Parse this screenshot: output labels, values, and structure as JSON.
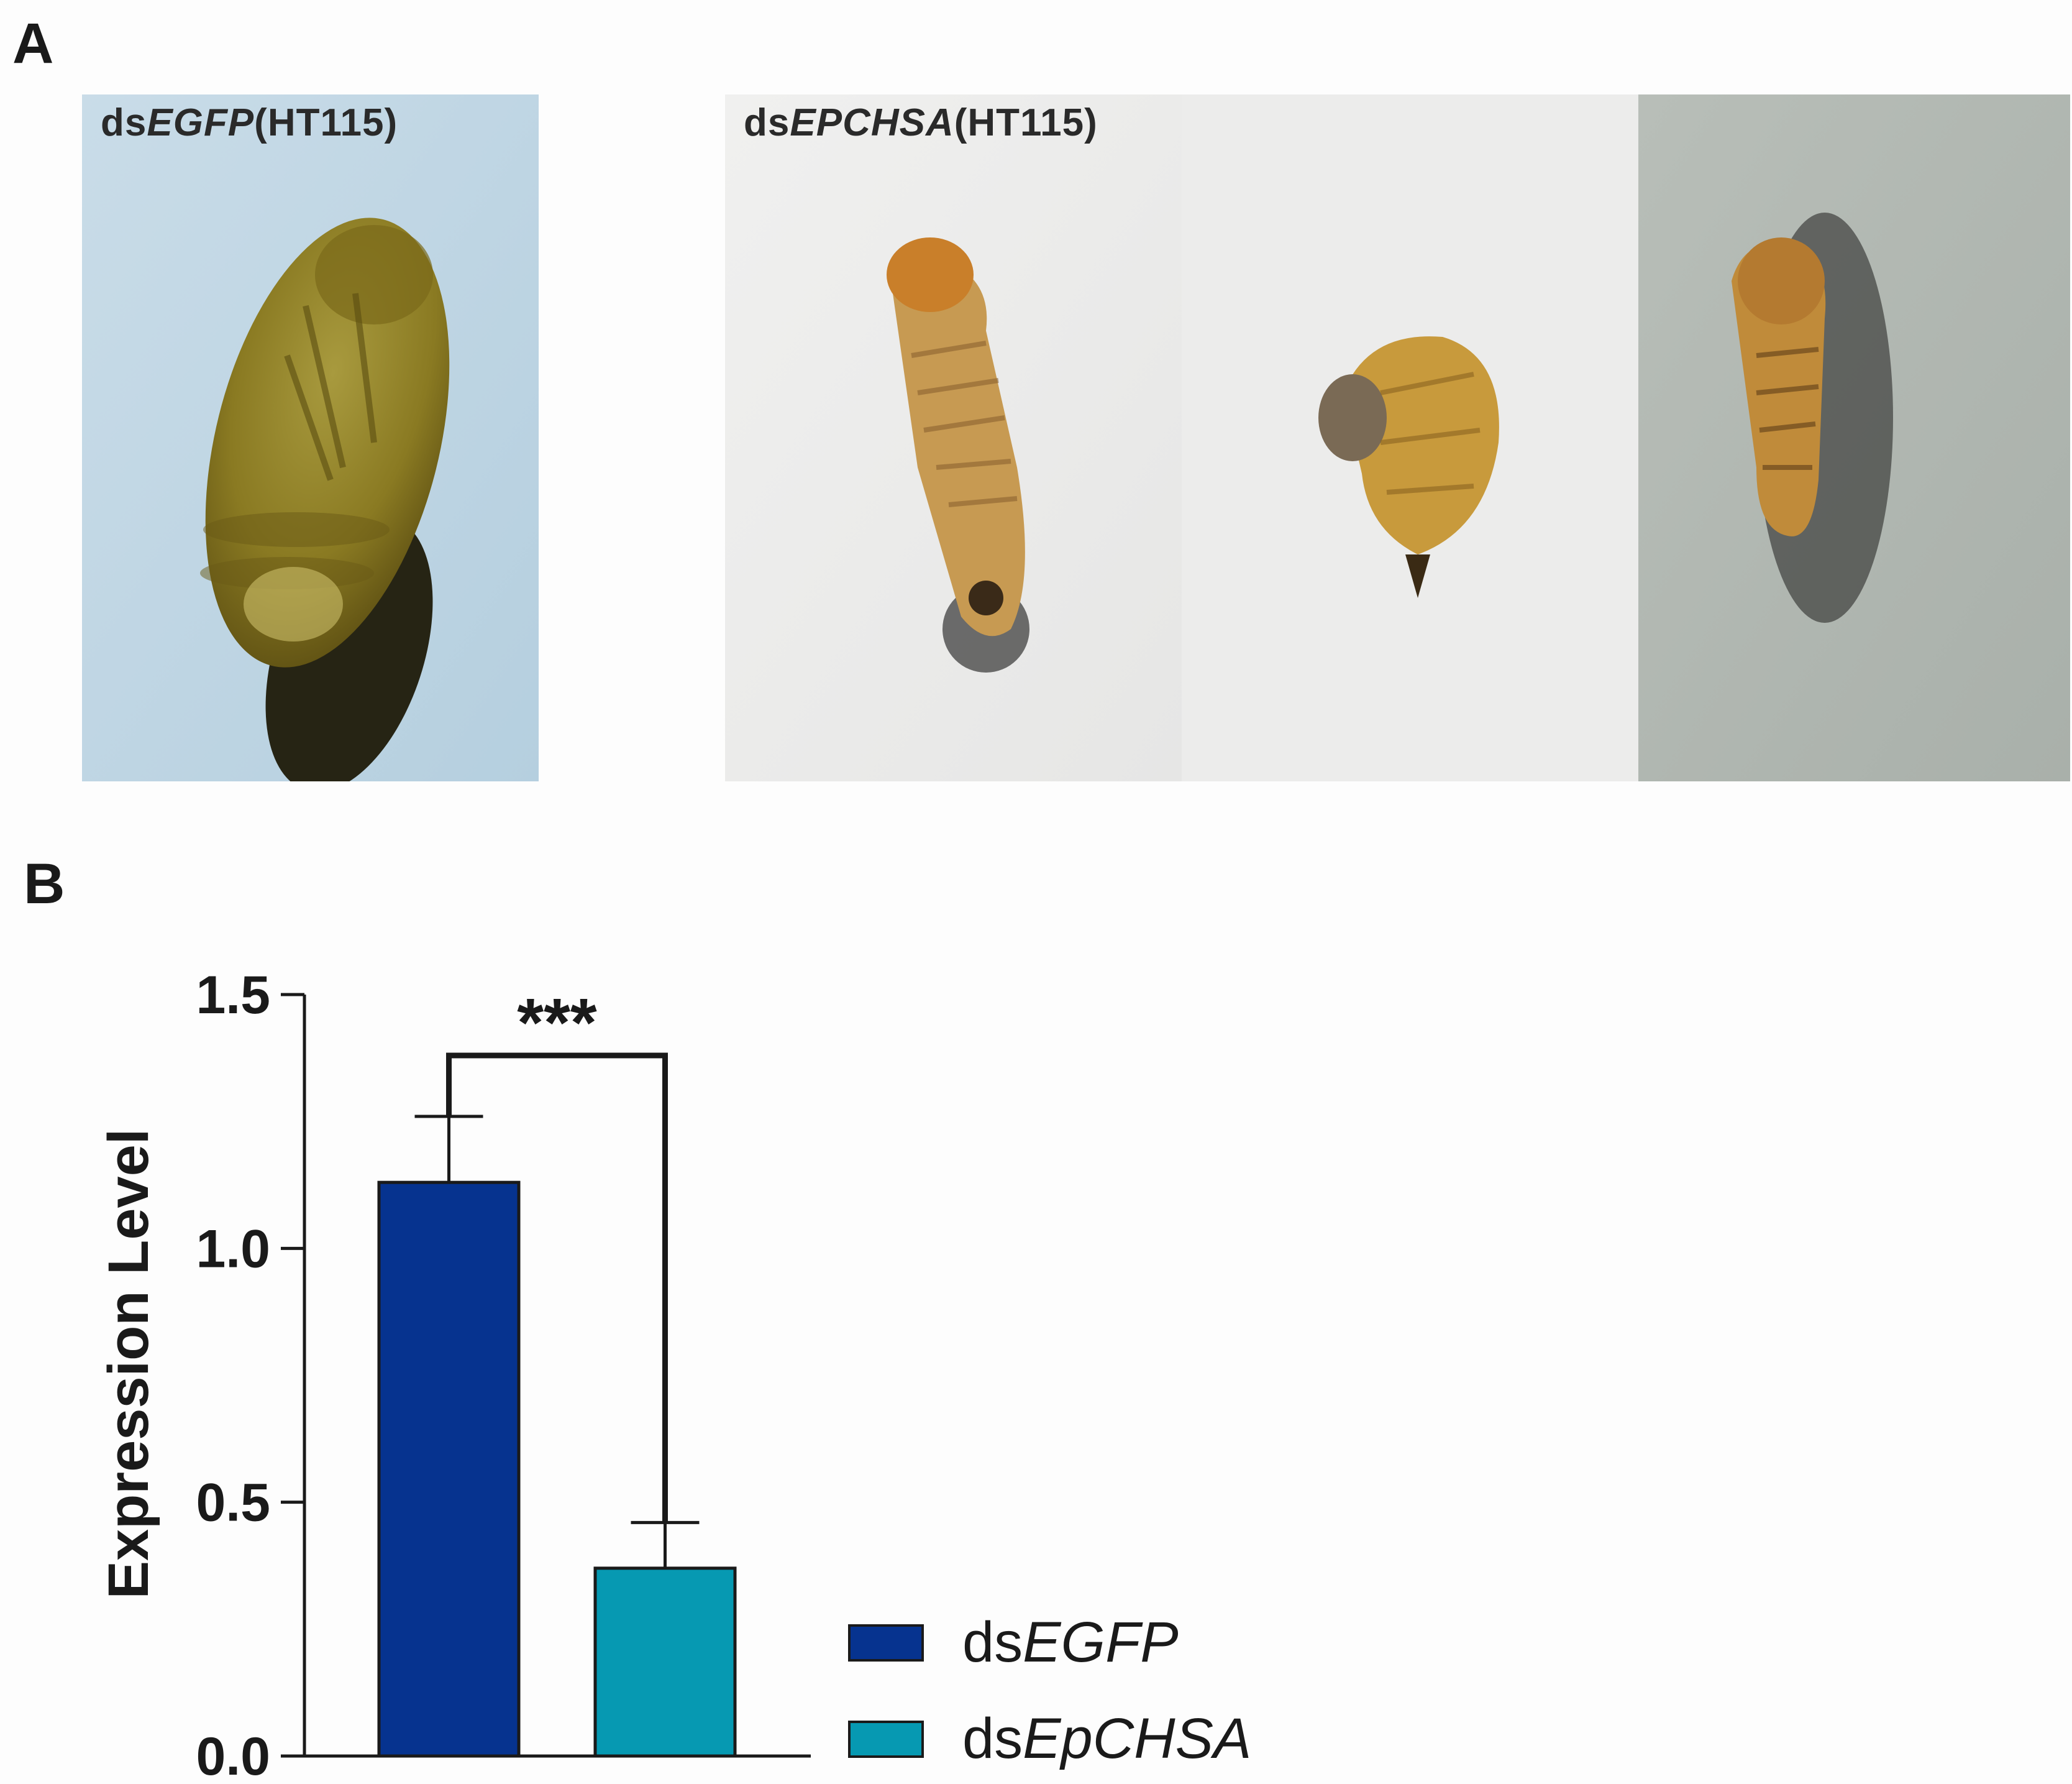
{
  "panels": {
    "a_letter": "A",
    "b_letter": "B"
  },
  "photos": [
    {
      "label_prefix": "ds",
      "label_gene": "EGFP",
      "label_suffix": "(HT115)",
      "subject": "pupa"
    },
    {
      "label_prefix": "ds",
      "label_gene": "EPCHSA",
      "label_suffix": "(HT115)",
      "subject": "deformed larva"
    },
    {
      "label_prefix": "",
      "label_gene": "",
      "label_suffix": "",
      "subject": "deformed curled pupa"
    },
    {
      "label_prefix": "",
      "label_gene": "",
      "label_suffix": "",
      "subject": "deformed larva"
    }
  ],
  "chart_data": {
    "type": "bar",
    "title": "",
    "xlabel": "",
    "ylabel": "Expression Level",
    "ylim": [
      0,
      1.5
    ],
    "yticks": [
      "0.0",
      "0.5",
      "1.0",
      "1.5"
    ],
    "categories": [
      "dsEGFP",
      "dsEpCHSA"
    ],
    "values": [
      1.13,
      0.37
    ],
    "errors": [
      0.13,
      0.09
    ],
    "colors": [
      "#06338f",
      "#0699b2"
    ],
    "significance": "***",
    "legend": [
      {
        "prefix": "ds",
        "gene": "EGFP",
        "color": "#06338f"
      },
      {
        "prefix": "ds",
        "gene": "EpCHSA",
        "color": "#0699b2"
      }
    ],
    "legend_position": "bottom-right",
    "grid": false
  }
}
